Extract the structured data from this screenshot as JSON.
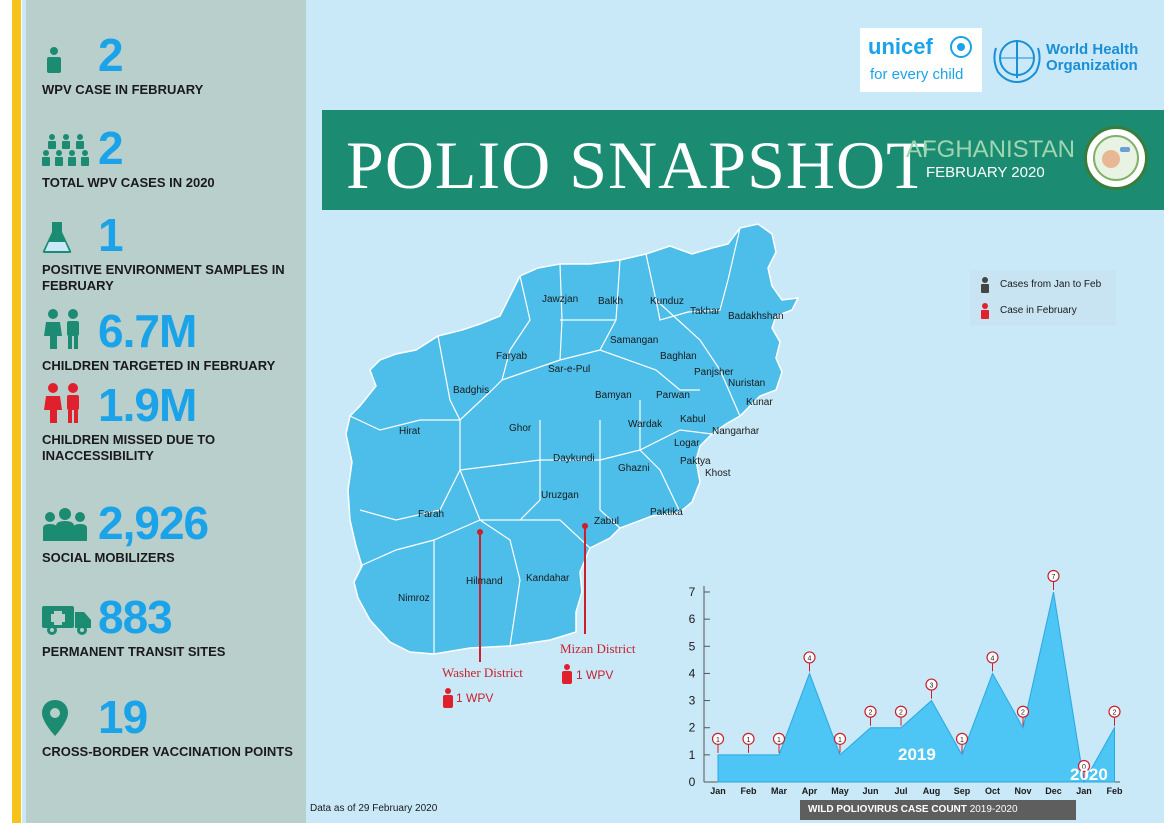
{
  "sidebar": {
    "stats": [
      {
        "value": "2",
        "label": "WPV CASE IN FEBRUARY",
        "icon": "person-icon"
      },
      {
        "value": "2",
        "label": "TOTAL WPV CASES IN 2020",
        "icon": "group-icon"
      },
      {
        "value": "1",
        "label": "POSITIVE ENVIRONMENT SAMPLES IN FEBRUARY",
        "icon": "flask-icon"
      },
      {
        "value": "6.7M",
        "label": "CHILDREN TARGETED IN FEBRUARY",
        "icon": "children-icon"
      },
      {
        "value": "1.9M",
        "label": "CHILDREN MISSED DUE TO INACCESSIBILITY",
        "icon": "children-red-icon"
      },
      {
        "value": "2,926",
        "label": "SOCIAL MOBILIZERS",
        "icon": "crowd-icon"
      },
      {
        "value": "883",
        "label": "PERMANENT TRANSIT SITES",
        "icon": "ambulance-icon"
      },
      {
        "value": "19",
        "label": "CROSS-BORDER VACCINATION POINTS",
        "icon": "location-pin-icon"
      }
    ]
  },
  "logos": {
    "unicef_name": "unicef",
    "unicef_tagline": "for every child",
    "who": "World Health Organization"
  },
  "banner": {
    "title": "POLIO SNAPSHOT",
    "country": "AFGHANISTAN",
    "month": "FEBRUARY 2020"
  },
  "legend": {
    "item1": "Cases from Jan to Feb",
    "item2": "Case in February"
  },
  "map": {
    "provinces": [
      "Jawzjan",
      "Balkh",
      "Kunduz",
      "Takhar",
      "Badakhshan",
      "Samangan",
      "Baghlan",
      "Faryab",
      "Sar-e-Pul",
      "Panjsher",
      "Nuristan",
      "Badghis",
      "Bamyan",
      "Parwan",
      "Kunar",
      "Hirat",
      "Ghor",
      "Wardak",
      "Kabul",
      "Nangarhar",
      "Logar",
      "Daykundi",
      "Ghazni",
      "Paktya",
      "Khost",
      "Uruzgan",
      "Farah",
      "Zabul",
      "Paktika",
      "Hilmand",
      "Kandahar",
      "Nimroz"
    ],
    "district1": {
      "name": "Washer District",
      "cases": "1 WPV"
    },
    "district2": {
      "name": "Mizan District",
      "cases": "1 WPV"
    }
  },
  "footnote": "Data as of 29 February 2020",
  "colors": {
    "accent_blue": "#1aa3e8",
    "banner_green": "#1b8c72",
    "alert_red": "#c9202c",
    "map_blue": "#4dbde9"
  },
  "chart_data": {
    "type": "area",
    "title": "WILD POLIOVIRUS CASE COUNT 2019-2020",
    "title_bold": "WILD POLIOVIRUS CASE COUNT",
    "title_years": "2019-2020",
    "categories": [
      "Jan",
      "Feb",
      "Mar",
      "Apr",
      "May",
      "Jun",
      "Jul",
      "Aug",
      "Sep",
      "Oct",
      "Nov",
      "Dec",
      "Jan",
      "Feb"
    ],
    "values": [
      1,
      1,
      1,
      4,
      1,
      2,
      2,
      3,
      1,
      4,
      2,
      7,
      0,
      2
    ],
    "year_labels": [
      "2019",
      "2020"
    ],
    "ylim": [
      0,
      7
    ],
    "yticks": [
      "0",
      "1",
      "2",
      "3",
      "4",
      "5",
      "6",
      "7"
    ]
  }
}
